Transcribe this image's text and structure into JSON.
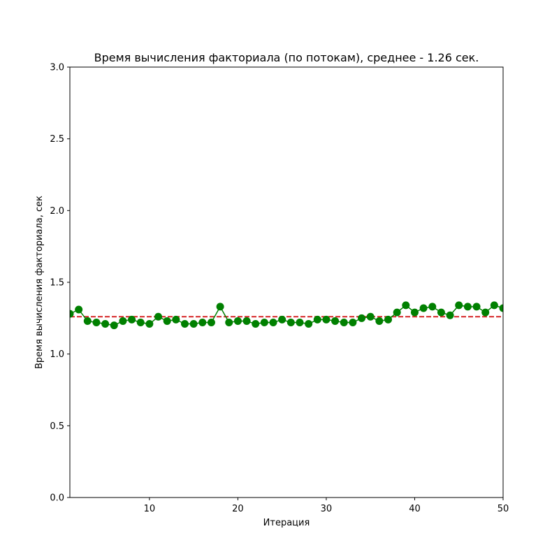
{
  "chart_data": {
    "type": "line",
    "title": "Время вычисления факториала (по потокам), среднее - 1.26 сек.",
    "xlabel": "Итерация",
    "ylabel": "Время вычисления факториала, сек",
    "xlim": [
      1,
      50
    ],
    "ylim": [
      0,
      3
    ],
    "x_ticks": [
      10,
      20,
      30,
      40,
      50
    ],
    "y_ticks": [
      0.0,
      0.5,
      1.0,
      1.5,
      2.0,
      2.5,
      3.0
    ],
    "x_tick_labels": [
      "10",
      "20",
      "30",
      "40",
      "50"
    ],
    "y_tick_labels": [
      "0.0",
      "0.5",
      "1.0",
      "1.5",
      "2.0",
      "2.5",
      "3.0"
    ],
    "grid": false,
    "series": [
      {
        "x": [
          1,
          2,
          3,
          4,
          5,
          6,
          7,
          8,
          9,
          10,
          11,
          12,
          13,
          14,
          15,
          16,
          17,
          18,
          19,
          20,
          21,
          22,
          23,
          24,
          25,
          26,
          27,
          28,
          29,
          30,
          31,
          32,
          33,
          34,
          35,
          36,
          37,
          38,
          39,
          40,
          41,
          42,
          43,
          44,
          45,
          46,
          47,
          48,
          49,
          50
        ],
        "values": [
          1.28,
          1.31,
          1.23,
          1.22,
          1.21,
          1.2,
          1.23,
          1.24,
          1.22,
          1.21,
          1.26,
          1.23,
          1.24,
          1.21,
          1.21,
          1.22,
          1.22,
          1.33,
          1.22,
          1.23,
          1.23,
          1.21,
          1.22,
          1.22,
          1.24,
          1.22,
          1.22,
          1.21,
          1.24,
          1.24,
          1.23,
          1.22,
          1.22,
          1.25,
          1.26,
          1.23,
          1.24,
          1.29,
          1.34,
          1.29,
          1.32,
          1.33,
          1.29,
          1.27,
          1.34,
          1.33,
          1.33,
          1.29,
          1.34,
          1.32
        ],
        "color": "#008000"
      }
    ],
    "mean_line": {
      "value": 1.26,
      "color": "#d62728",
      "style": "dashed"
    }
  }
}
